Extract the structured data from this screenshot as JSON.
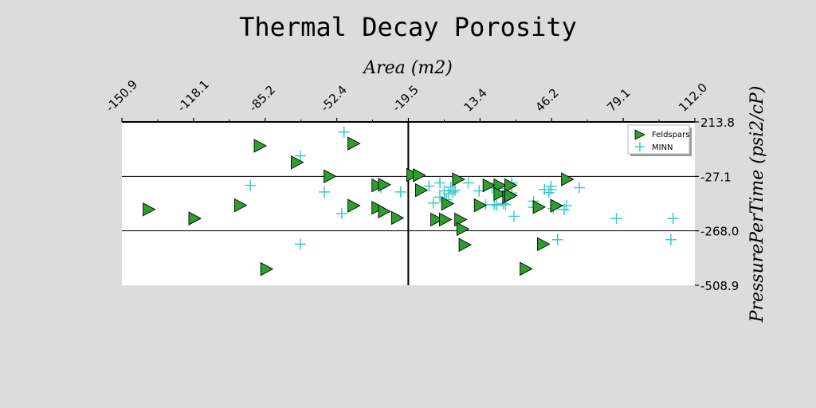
{
  "chart_data": {
    "type": "scatter",
    "title": "Thermal Decay Porosity",
    "xlabel": "Area (m2)",
    "ylabel": "PressurePerTime (psi2/cP)",
    "xlim": [
      -150.9,
      112.0
    ],
    "ylim": [
      -508.9,
      213.8
    ],
    "xticks": [
      "-150.9",
      "-118.1",
      "-85.2",
      "-52.4",
      "-19.5",
      "13.4",
      "46.2",
      "79.1",
      "112.0"
    ],
    "yticks": [
      "213.8",
      "-27.1",
      "-268.0",
      "-508.9"
    ],
    "hlines": [
      -27.1,
      -268.0
    ],
    "vline": -19.5,
    "legend_position": "upper-right",
    "colors": {
      "background": "#dcdcdc",
      "plot": "#ffffff",
      "feldspars": "#2e9e2e",
      "minn": "#3cc8cc"
    },
    "series": [
      {
        "name": "Feldspars",
        "marker": "triangle-right",
        "points": [
          [
            -139,
            -173
          ],
          [
            -118,
            -213
          ],
          [
            -97,
            -155
          ],
          [
            -88,
            108
          ],
          [
            -85,
            -437
          ],
          [
            -71,
            35
          ],
          [
            -56,
            -27
          ],
          [
            -45,
            118
          ],
          [
            -45,
            -157
          ],
          [
            -34,
            -67
          ],
          [
            -34,
            -166
          ],
          [
            -31,
            -64
          ],
          [
            -31,
            -182
          ],
          [
            -25,
            -211
          ],
          [
            -18,
            -20
          ],
          [
            -15,
            -22
          ],
          [
            -14,
            -88
          ],
          [
            -7,
            -218
          ],
          [
            -3,
            -218
          ],
          [
            -2,
            -148
          ],
          [
            3,
            -40
          ],
          [
            4,
            -218
          ],
          [
            5,
            -260
          ],
          [
            6,
            -330
          ],
          [
            13,
            -155
          ],
          [
            17,
            -67
          ],
          [
            22,
            -67
          ],
          [
            22,
            -105
          ],
          [
            26,
            -118
          ],
          [
            27,
            -67
          ],
          [
            27,
            -112
          ],
          [
            34,
            -436
          ],
          [
            40,
            -163
          ],
          [
            42,
            -327
          ],
          [
            48,
            -157
          ],
          [
            53,
            -40
          ]
        ]
      },
      {
        "name": "MINN",
        "marker": "plus",
        "points": [
          [
            -92,
            -67
          ],
          [
            -69,
            64
          ],
          [
            -69,
            -327
          ],
          [
            -58,
            -96
          ],
          [
            -50,
            -192
          ],
          [
            -49,
            169
          ],
          [
            -32,
            -77
          ],
          [
            -23,
            -96
          ],
          [
            -10,
            -70
          ],
          [
            -8,
            -145
          ],
          [
            -5,
            -56
          ],
          [
            -5,
            -119
          ],
          [
            -3,
            -91
          ],
          [
            -2,
            -131
          ],
          [
            -1,
            -104
          ],
          [
            0,
            -75
          ],
          [
            1,
            -96
          ],
          [
            2,
            -88
          ],
          [
            8,
            -56
          ],
          [
            13,
            -91
          ],
          [
            16,
            -152
          ],
          [
            19,
            -78
          ],
          [
            20,
            -152
          ],
          [
            21,
            -155
          ],
          [
            22,
            -80
          ],
          [
            24,
            -147
          ],
          [
            25,
            -152
          ],
          [
            28,
            -56
          ],
          [
            28,
            -101
          ],
          [
            29,
            -204
          ],
          [
            38,
            -137
          ],
          [
            38,
            -164
          ],
          [
            43,
            -85
          ],
          [
            45,
            -99
          ],
          [
            46,
            -71
          ],
          [
            46,
            -85
          ],
          [
            47,
            -169
          ],
          [
            49,
            -307
          ],
          [
            52,
            -173
          ],
          [
            53,
            -157
          ],
          [
            59,
            -77
          ],
          [
            76,
            -213
          ],
          [
            102,
            -213
          ],
          [
            101,
            -307
          ]
        ]
      }
    ]
  }
}
